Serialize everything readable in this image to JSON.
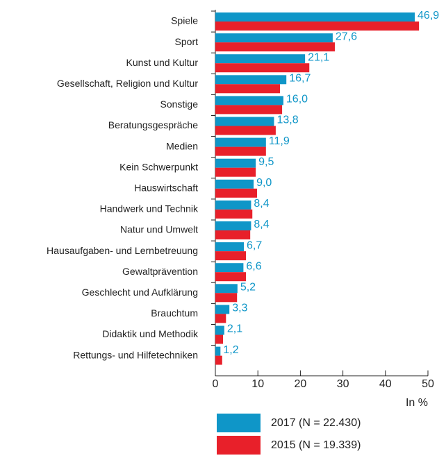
{
  "chart_data": {
    "type": "bar",
    "orientation": "horizontal",
    "categories": [
      "Spiele",
      "Sport",
      "Kunst und Kultur",
      "Gesellschaft, Religion und Kultur",
      "Sonstige",
      "Beratungsgespräche",
      "Medien",
      "Kein Schwerpunkt",
      "Hauswirtschaft",
      "Handwerk und Technik",
      "Natur und Umwelt",
      "Hausaufgaben- und Lernbetreuung",
      "Gewaltprävention",
      "Geschlecht und Aufklärung",
      "Brauchtum",
      "Didaktik und Methodik",
      "Rettungs- und Hilfetechniken"
    ],
    "series": [
      {
        "name": "2017 (N = 22.430)",
        "color": "#0f96c8",
        "values": [
          46.9,
          27.6,
          21.1,
          16.7,
          16.0,
          13.8,
          11.9,
          9.5,
          9.0,
          8.4,
          8.4,
          6.7,
          6.6,
          5.2,
          3.3,
          2.1,
          1.2
        ],
        "value_labels": [
          "46,9",
          "27,6",
          "21,1",
          "16,7",
          "16,0",
          "13,8",
          "11,9",
          "9,5",
          "9,0",
          "8,4",
          "8,4",
          "6,7",
          "6,6",
          "5,2",
          "3,3",
          "2,1",
          "1,2"
        ]
      },
      {
        "name": "2015 (N = 19.339)",
        "color": "#e8202a",
        "values": [
          47.9,
          28.1,
          22.1,
          15.2,
          15.7,
          14.2,
          11.9,
          9.5,
          9.8,
          8.7,
          8.2,
          7.2,
          7.2,
          5.1,
          2.5,
          1.8,
          1.6
        ]
      }
    ],
    "xlabel": "In %",
    "xlim": [
      0,
      50
    ],
    "xticks": [
      0,
      10,
      20,
      30,
      40,
      50
    ]
  }
}
